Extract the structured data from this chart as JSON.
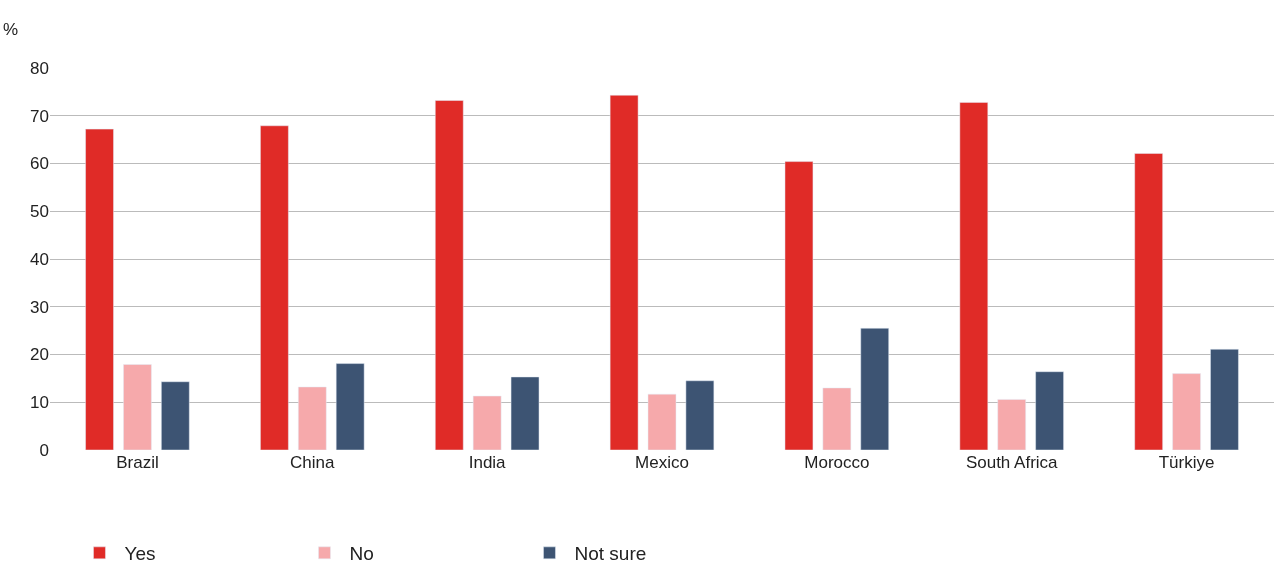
{
  "chart_data": {
    "type": "bar",
    "ylabel": "%",
    "categories": [
      "Brazil",
      "China",
      "India",
      "Mexico",
      "Morocco",
      "South Africa",
      "Türkiye"
    ],
    "series": [
      {
        "name": "Yes",
        "color": "#e02b27",
        "values": [
          67.2,
          67.9,
          73.2,
          74.3,
          60.4,
          72.8,
          62.1
        ]
      },
      {
        "name": "No",
        "color": "#f6a9ab",
        "values": [
          17.9,
          13.2,
          11.3,
          11.7,
          13.0,
          10.6,
          16.0
        ]
      },
      {
        "name": "Not sure",
        "color": "#3d5473",
        "values": [
          14.3,
          18.1,
          15.3,
          14.5,
          25.5,
          16.4,
          21.1
        ]
      }
    ],
    "ylim": [
      0,
      80
    ],
    "yticks": [
      0,
      10,
      20,
      30,
      40,
      50,
      60,
      70,
      80
    ],
    "grid": "y",
    "legend": "bottom left"
  }
}
